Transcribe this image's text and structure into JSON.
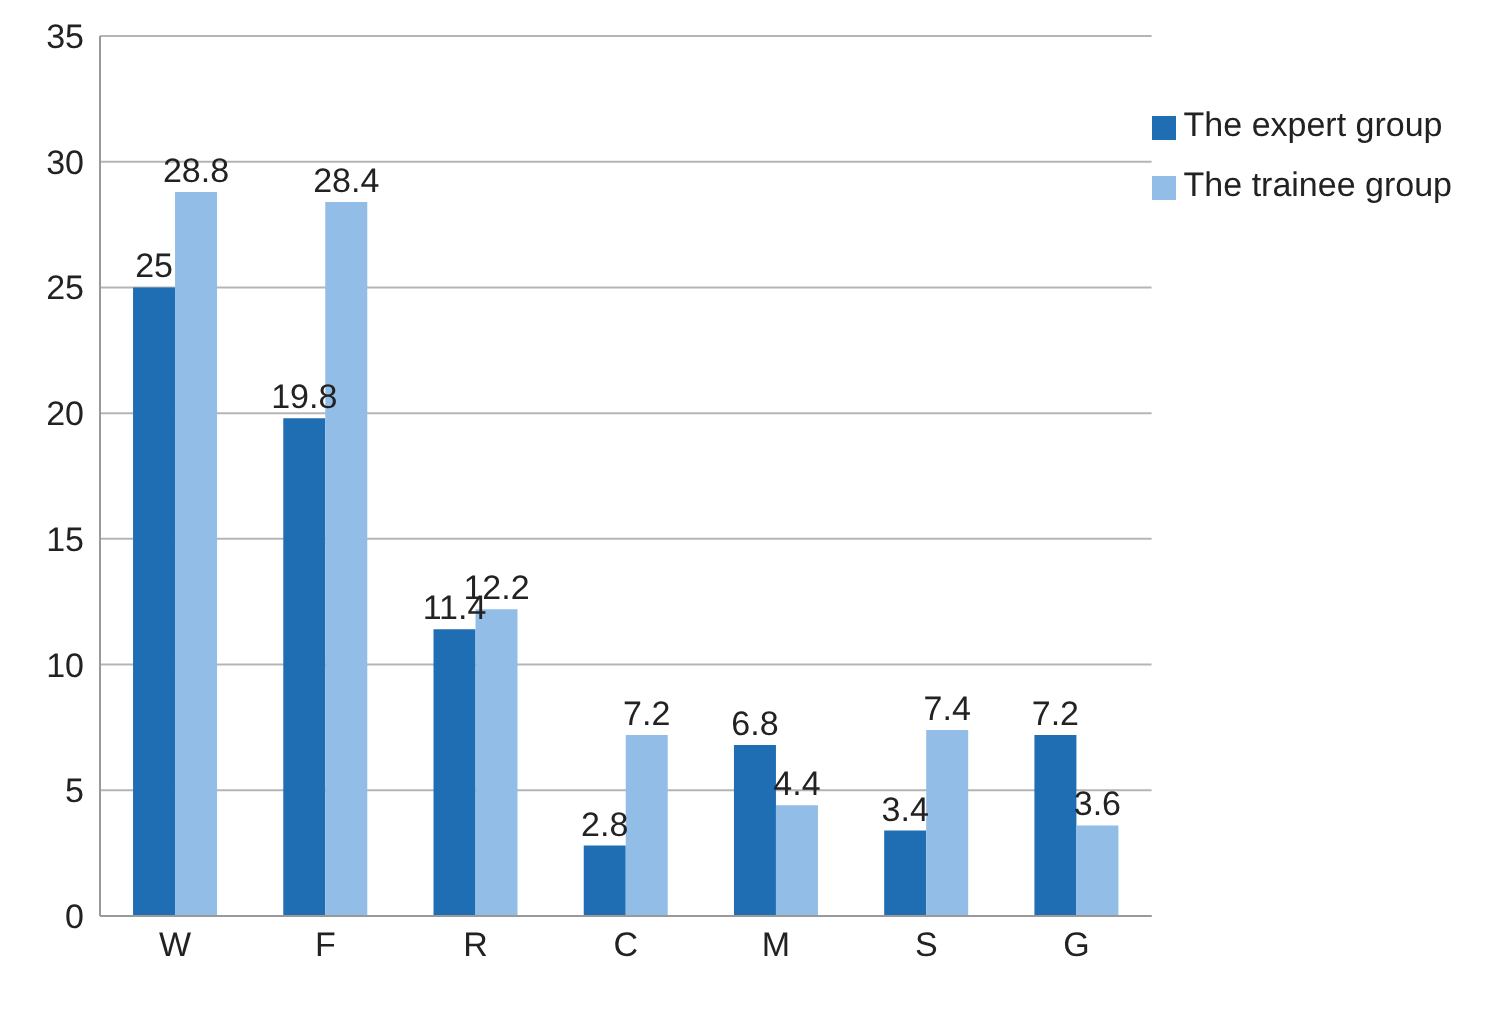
{
  "chart_data": {
    "type": "bar",
    "categories": [
      "W",
      "F",
      "R",
      "C",
      "M",
      "S",
      "G"
    ],
    "series": [
      {
        "name": "The expert group",
        "color": "#1f6eb4",
        "values": [
          25,
          19.8,
          11.4,
          2.8,
          6.8,
          3.4,
          7.2
        ]
      },
      {
        "name": "The trainee group",
        "color": "#92bde6",
        "values": [
          28.8,
          28.4,
          12.2,
          7.2,
          4.4,
          7.4,
          3.6
        ]
      }
    ],
    "ylim": [
      0,
      35
    ],
    "yticks": [
      0,
      5,
      10,
      15,
      20,
      25,
      30,
      35
    ],
    "grid": "y",
    "legend": "top right",
    "data_labels": true
  }
}
